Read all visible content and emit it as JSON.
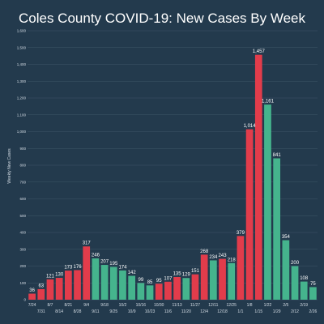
{
  "chart_data": {
    "type": "bar",
    "title": "Coles County COVID-19: New Cases By Week",
    "ylabel": "Weekly New Cases",
    "xlabel": "",
    "ylim": [
      0,
      1600
    ],
    "yticks": [
      0,
      100,
      200,
      300,
      400,
      500,
      600,
      700,
      800,
      900,
      1000,
      1100,
      1200,
      1300,
      1400,
      1500,
      1600
    ],
    "ytick_labels": [
      "0",
      "100",
      "200",
      "300",
      "400",
      "500",
      "600",
      "700",
      "800",
      "900",
      "1,000",
      "1,100",
      "1,200",
      "1,300",
      "1,400",
      "1,500",
      "1,600"
    ],
    "grid": true,
    "colors": {
      "red": "#e23c4b",
      "green": "#45b48d"
    },
    "categories": [
      "7/24",
      "7/31",
      "8/7",
      "8/14",
      "8/21",
      "8/28",
      "9/4",
      "9/11",
      "9/18",
      "9/25",
      "10/2",
      "10/9",
      "10/16",
      "10/23",
      "10/30",
      "11/6",
      "11/13",
      "11/20",
      "11/27",
      "12/4",
      "12/11",
      "12/18",
      "12/25",
      "1/1",
      "1/8",
      "1/15",
      "1/22",
      "1/29",
      "2/5",
      "2/12",
      "2/19",
      "2/26"
    ],
    "values": [
      36,
      63,
      121,
      130,
      173,
      176,
      317,
      246,
      207,
      195,
      174,
      142,
      99,
      85,
      95,
      107,
      135,
      129,
      151,
      268,
      234,
      243,
      218,
      379,
      1014,
      1457,
      1161,
      841,
      354,
      200,
      108,
      75
    ],
    "value_labels": [
      "36",
      "63",
      "121",
      "130",
      "173",
      "176",
      "317",
      "246",
      "207",
      "195",
      "174",
      "142",
      "99",
      "85",
      "95",
      "107",
      "135",
      "129",
      "151",
      "268",
      "234",
      "243",
      "218",
      "379",
      "1,014",
      "1,457",
      "1,161",
      "841",
      "354",
      "200",
      "108",
      "75"
    ],
    "bar_colors": [
      "red",
      "red",
      "red",
      "red",
      "red",
      "red",
      "red",
      "green",
      "green",
      "green",
      "green",
      "green",
      "green",
      "green",
      "red",
      "red",
      "red",
      "green",
      "red",
      "red",
      "green",
      "red",
      "green",
      "red",
      "red",
      "red",
      "green",
      "green",
      "green",
      "green",
      "green",
      "green"
    ]
  }
}
